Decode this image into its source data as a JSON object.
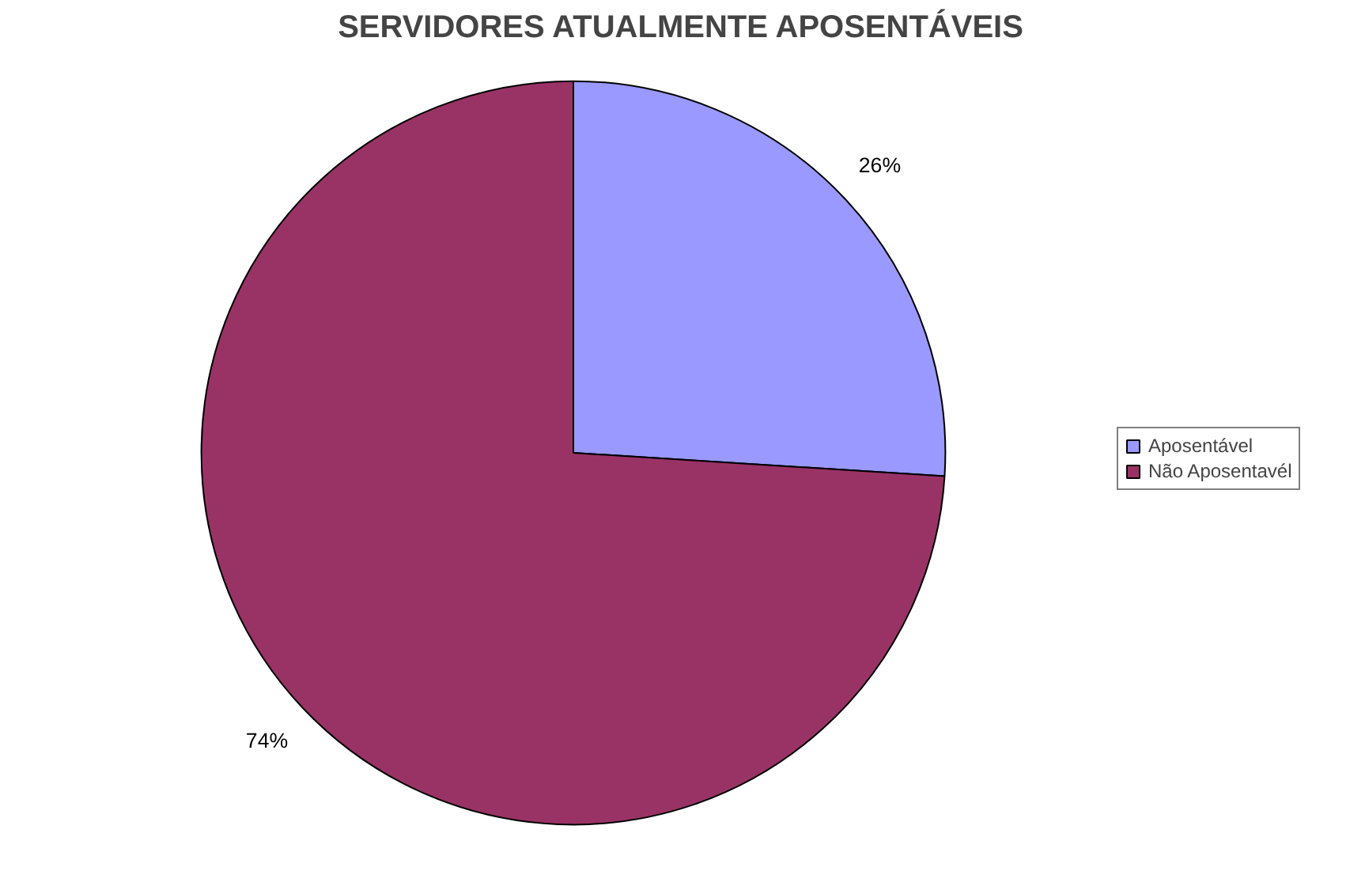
{
  "chart_data": {
    "type": "pie",
    "title": "SERVIDORES ATUALMENTE APOSENTÁVEIS",
    "categories": [
      "Aposentável",
      "Não Aposentavél"
    ],
    "values": [
      26,
      74
    ],
    "colors": [
      "#9999ff",
      "#993366"
    ],
    "value_labels": [
      "26%",
      "74%"
    ],
    "legend": "right"
  }
}
